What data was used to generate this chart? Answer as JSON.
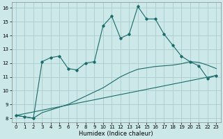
{
  "xlabel": "Humidex (Indice chaleur)",
  "background_color": "#cce8e8",
  "grid_color": "#aacccc",
  "line_color": "#1a6b6b",
  "xlim_min": -0.5,
  "xlim_max": 23.5,
  "ylim_min": 7.7,
  "ylim_max": 16.4,
  "yticks": [
    8,
    9,
    10,
    11,
    12,
    13,
    14,
    15,
    16
  ],
  "xticks": [
    0,
    1,
    2,
    3,
    4,
    5,
    6,
    7,
    8,
    9,
    10,
    11,
    12,
    13,
    14,
    15,
    16,
    17,
    18,
    19,
    20,
    21,
    22,
    23
  ],
  "series1_x": [
    0,
    1,
    2,
    3,
    4,
    5,
    6,
    7,
    8,
    9,
    10,
    11,
    12,
    13,
    14,
    15,
    16,
    17,
    18,
    19,
    20,
    21,
    22,
    23
  ],
  "series1_y": [
    8.2,
    8.1,
    8.0,
    12.1,
    12.4,
    12.5,
    11.6,
    11.5,
    12.0,
    12.1,
    14.7,
    15.4,
    13.8,
    14.1,
    16.1,
    15.2,
    15.2,
    14.1,
    13.3,
    12.5,
    12.1,
    11.8,
    10.9,
    11.1
  ],
  "series2_x": [
    0,
    1,
    2,
    3,
    4,
    5,
    6,
    7,
    8,
    9,
    10,
    11,
    12,
    13,
    14,
    15,
    16,
    17,
    18,
    19,
    20,
    21,
    22,
    23
  ],
  "series2_y": [
    8.2,
    8.1,
    8.0,
    8.4,
    8.6,
    8.8,
    9.0,
    9.3,
    9.6,
    9.9,
    10.2,
    10.6,
    11.0,
    11.3,
    11.55,
    11.65,
    11.75,
    11.8,
    11.85,
    11.95,
    12.1,
    12.05,
    11.85,
    11.6
  ],
  "series3_x": [
    0,
    23
  ],
  "series3_y": [
    8.2,
    11.1
  ],
  "xlabel_fontsize": 6,
  "tick_fontsize": 5,
  "linewidth": 0.8,
  "markersize": 1.8
}
